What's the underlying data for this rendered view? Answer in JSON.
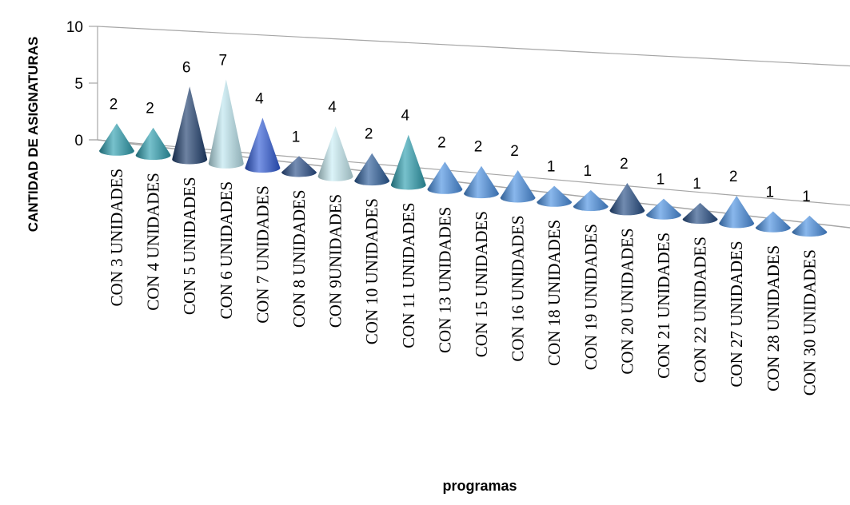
{
  "chart_data": {
    "type": "bar",
    "bar_shape": "3d-cone",
    "ylabel": "CANTIDAD DE ASIGNATURAS",
    "xlabel": "programas",
    "yticks": [
      0,
      5,
      10
    ],
    "ylim": [
      0,
      10
    ],
    "grid": false,
    "categories": [
      "CON 3 UNIDADES",
      "CON 4 UNIDADES",
      "CON 5 UNIDADES",
      "CON 6 UNIDADES",
      "CON 7 UNIDADES",
      "CON 8 UNIDADES",
      "CON 9UNIDADES",
      "CON 10 UNIDADES",
      "CON 11 UNIDADES",
      "CON 13 UNIDADES",
      "CON 15 UNIDADES",
      "CON 16 UNIDADES",
      "CON 18 UNIDADES",
      "CON 19 UNIDADES",
      "CON 20 UNIDADES",
      "CON 21 UNIDADES",
      "CON 22 UNIDADES",
      "CON 27 UNIDADES",
      "CON 28 UNIDADES",
      "CON 30 UNIDADES"
    ],
    "values": [
      2,
      2,
      6,
      7,
      4,
      1,
      4,
      2,
      4,
      2,
      2,
      2,
      1,
      1,
      2,
      1,
      1,
      2,
      1,
      1
    ],
    "colors": [
      "#2E9FB0",
      "#2E9FB0",
      "#1E3F6E",
      "#BDE7F0",
      "#2F5BD6",
      "#2B4F8A",
      "#C9EEF5",
      "#2B5C99",
      "#2E9FB0",
      "#4A90E2",
      "#4A90E2",
      "#4A90E2",
      "#4A90E2",
      "#4A90E2",
      "#254D85",
      "#4A90E2",
      "#254D85",
      "#4A90E2",
      "#4A90E2",
      "#4A90E2"
    ]
  }
}
